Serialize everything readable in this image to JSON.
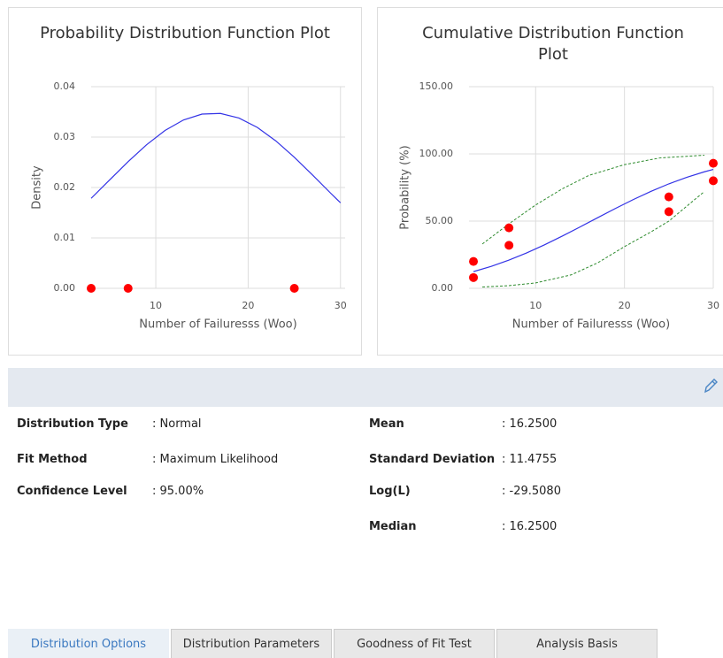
{
  "chart_data": [
    {
      "type": "line",
      "title": "Probability Distribution Function Plot",
      "x_label": "Number of Failuresss (Woo)",
      "y_label": "Density",
      "xlim": [
        3,
        30.5
      ],
      "ylim": [
        0,
        0.04
      ],
      "xticks": [
        10,
        20,
        30
      ],
      "yticks": [
        {
          "value": 0,
          "label": "0.00"
        },
        {
          "value": 0.01,
          "label": "0.01"
        },
        {
          "value": 0.02,
          "label": "0.02"
        },
        {
          "value": 0.03,
          "label": "0.03"
        },
        {
          "value": 0.04,
          "label": "0.04"
        }
      ],
      "grid": true,
      "series": [
        {
          "type": "line",
          "color": "#3333e6",
          "x": [
            3,
            5,
            7,
            9,
            11,
            13,
            15,
            17,
            19,
            21,
            23,
            25,
            27,
            29,
            30
          ],
          "values": [
            0.01785,
            0.0215,
            0.02512,
            0.02848,
            0.03131,
            0.0334,
            0.03456,
            0.03469,
            0.03378,
            0.03191,
            0.02924,
            0.02599,
            0.02242,
            0.01875,
            0.01696
          ]
        },
        {
          "type": "scatter",
          "color": "#ff0000",
          "x": [
            3,
            7,
            25
          ],
          "values": [
            0,
            0,
            0
          ]
        }
      ]
    },
    {
      "type": "line",
      "title": "Cumulative Distribution Function Plot",
      "x_label": "Number of Failuresss (Woo)",
      "y_label": "Probability (%)",
      "xlim": [
        2.5,
        30
      ],
      "ylim": [
        0,
        150
      ],
      "xticks": [
        10,
        20,
        30
      ],
      "yticks": [
        {
          "value": 0,
          "label": "0.00"
        },
        {
          "value": 50,
          "label": "50.00"
        },
        {
          "value": 100,
          "label": "100.00"
        },
        {
          "value": 150,
          "label": "150.00"
        }
      ],
      "grid": true,
      "series": [
        {
          "type": "line",
          "color": "#3333e6",
          "x": [
            3,
            5,
            7,
            9,
            11,
            13,
            15,
            17,
            19,
            21,
            23,
            25,
            27,
            29,
            30
          ],
          "values": [
            12.41,
            16.35,
            21.01,
            26.38,
            32.37,
            38.85,
            45.66,
            52.61,
            59.47,
            66.05,
            72.18,
            77.71,
            82.56,
            86.67,
            88.46
          ]
        },
        {
          "type": "line",
          "color": "#2e8b2e",
          "dashed": true,
          "x": [
            4,
            7,
            10,
            13,
            16,
            20,
            24,
            29
          ],
          "values": [
            33,
            48,
            62,
            74,
            84,
            92,
            97,
            99
          ]
        },
        {
          "type": "line",
          "color": "#2e8b2e",
          "dashed": true,
          "x": [
            4,
            7,
            10,
            14,
            17,
            20,
            23,
            25,
            27,
            29
          ],
          "values": [
            1,
            2,
            4,
            10,
            19,
            31,
            42,
            50,
            61,
            72
          ]
        },
        {
          "type": "scatter",
          "color": "#ff0000",
          "x": [
            3,
            3,
            7,
            7,
            25,
            25,
            30,
            30
          ],
          "values": [
            20,
            8,
            45,
            32,
            68,
            57,
            93,
            80
          ]
        }
      ]
    }
  ],
  "details": {
    "left": [
      {
        "label": "Distribution Type",
        "value": ": Normal"
      },
      {
        "label": "Fit Method",
        "value": ": Maximum Likelihood"
      },
      {
        "label": "Confidence Level",
        "value": ": 95.00%"
      }
    ],
    "right": [
      {
        "label": "Mean",
        "value": ": 16.2500"
      },
      {
        "label": "Standard Deviation",
        "value": ": 11.4755"
      },
      {
        "label": "Log(L)",
        "value": ": -29.5080"
      },
      {
        "label": "Median",
        "value": ": 16.2500"
      }
    ]
  },
  "tabs": [
    "Distribution Options",
    "Distribution Parameters",
    "Goodness of Fit Test",
    "Analysis Basis"
  ]
}
